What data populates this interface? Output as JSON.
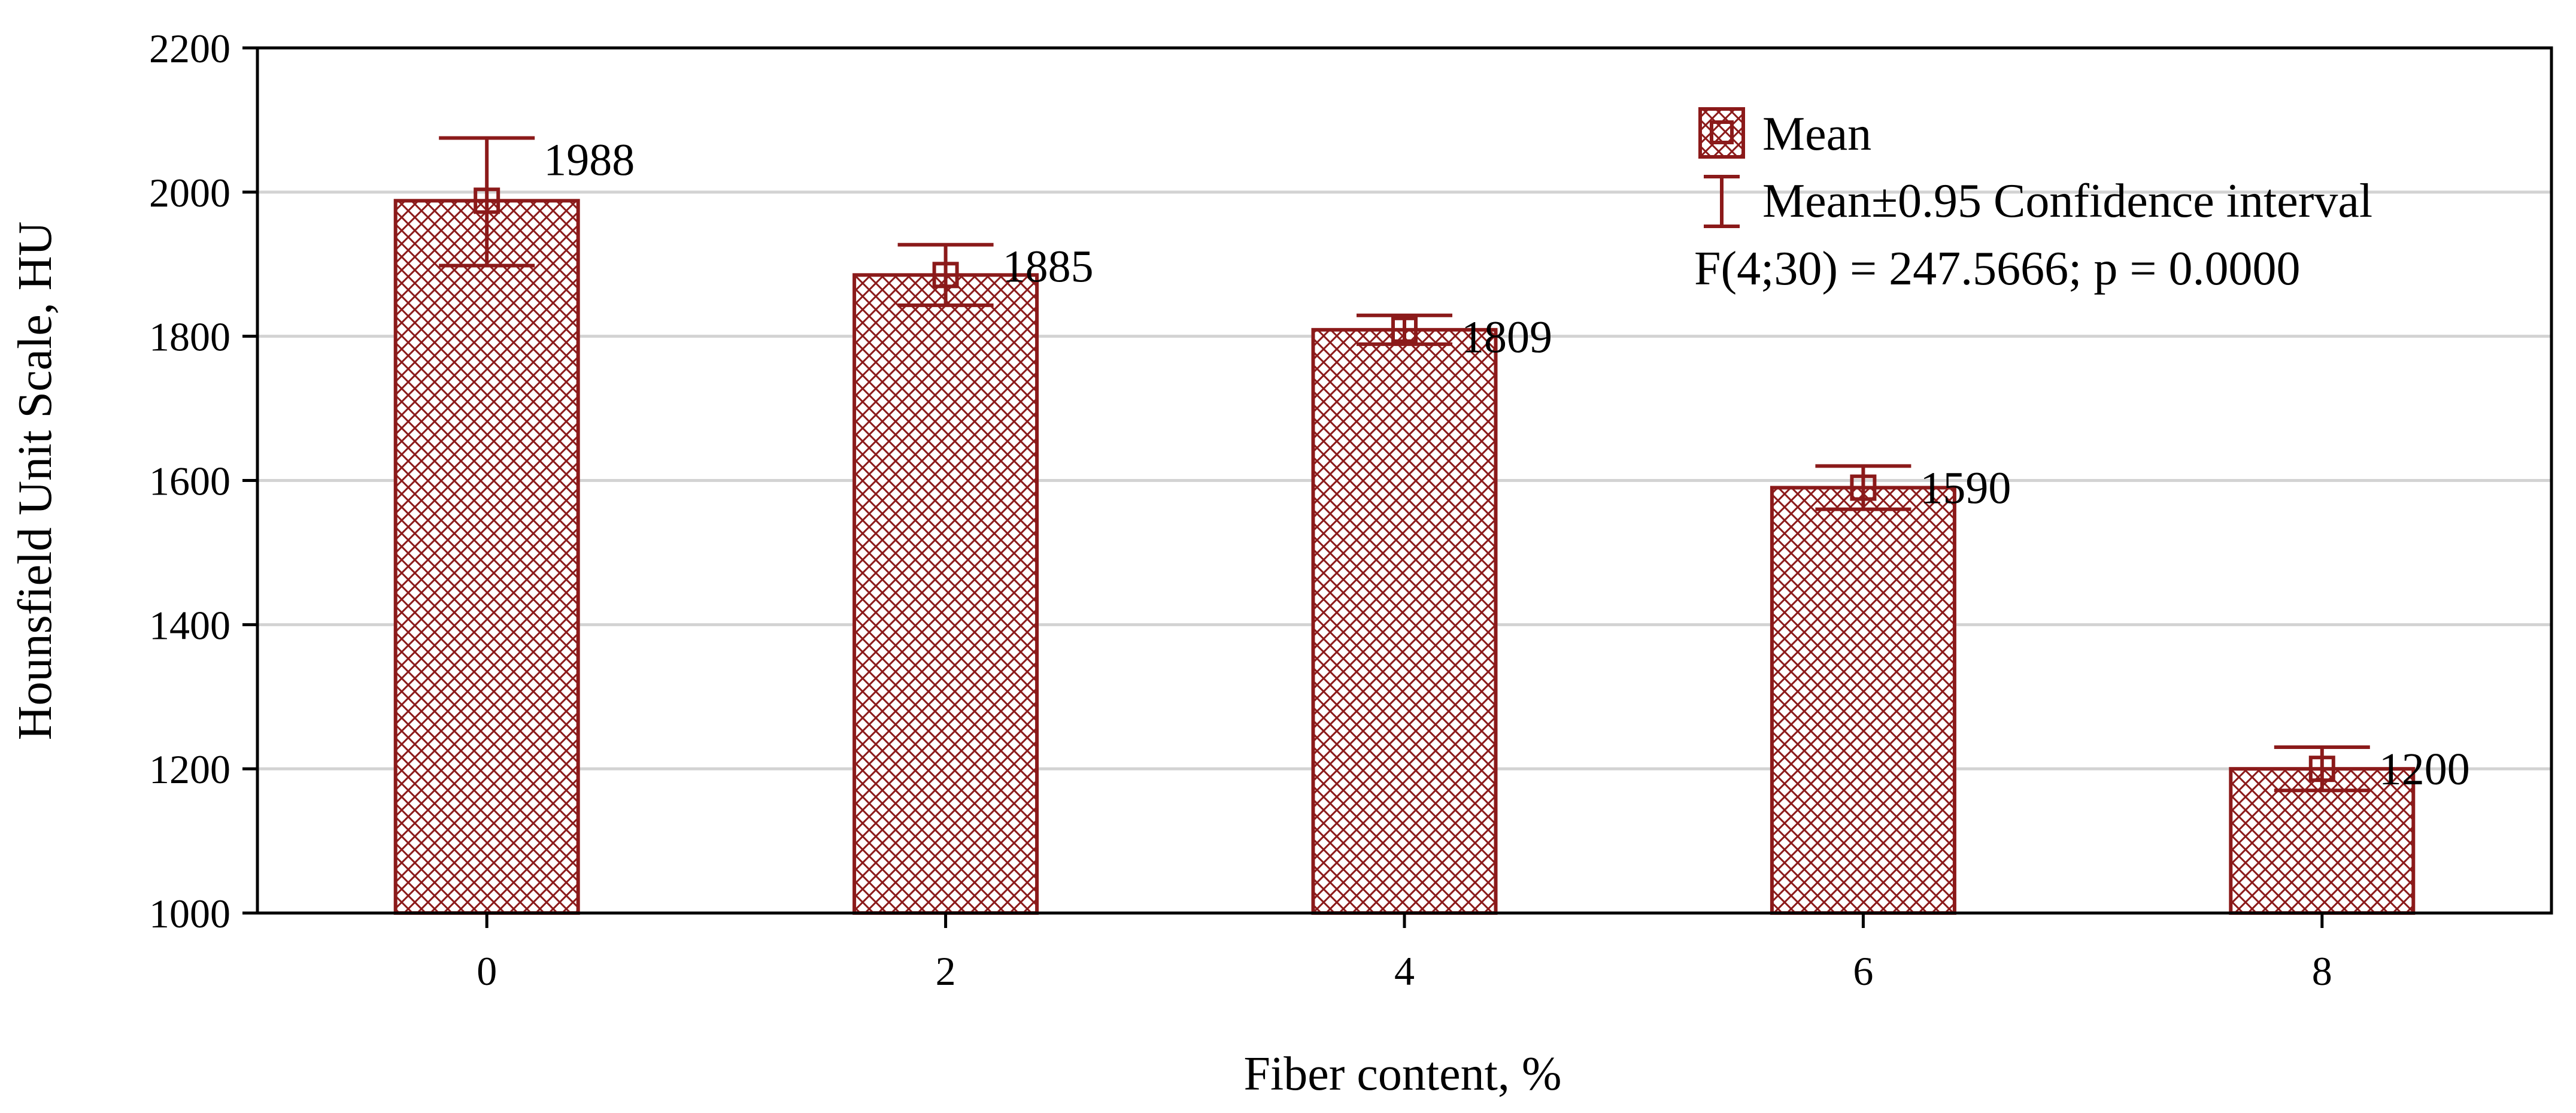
{
  "chart_data": {
    "type": "bar",
    "title": "",
    "xlabel": "Fiber content, %",
    "ylabel": "Hounsfield Unit Scale, HU",
    "categories": [
      "0",
      "2",
      "4",
      "6",
      "8"
    ],
    "values": [
      1988,
      1885,
      1809,
      1590,
      1200
    ],
    "data_labels": [
      "1988",
      "1885",
      "1809",
      "1590",
      "1200"
    ],
    "ci_lower": [
      1898,
      1843,
      1789,
      1560,
      1170
    ],
    "ci_upper": [
      2075,
      1927,
      1829,
      1620,
      1230
    ],
    "ylim": [
      1000,
      2200
    ],
    "yticks": [
      1000,
      1200,
      1400,
      1600,
      1800,
      2000,
      2200
    ],
    "ytick_labels": [
      "1000",
      "1200",
      "1400",
      "1600",
      "1800",
      "2000",
      "2200"
    ],
    "grid": true,
    "legend_position": "top-right",
    "legend": {
      "mean_label": "Mean",
      "ci_label": "Mean±0.95 Confidence interval",
      "stat_text": "F(4;30) = 247.5666; p = 0.0000"
    },
    "colors": {
      "bar": "#8b1a1a",
      "axis": "#000000",
      "grid": "#d3d3d3"
    }
  }
}
